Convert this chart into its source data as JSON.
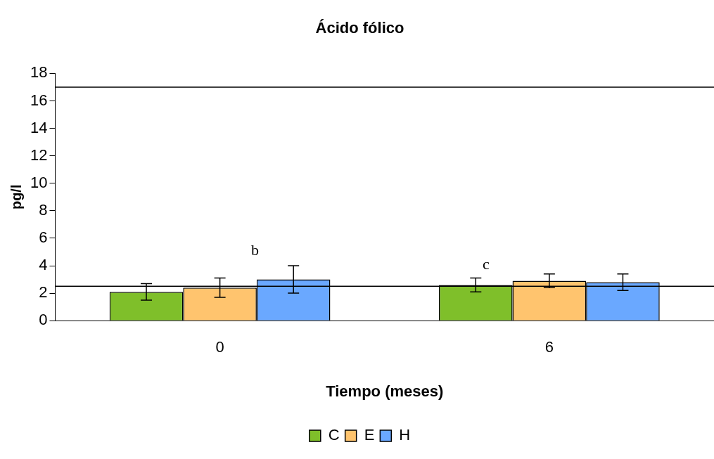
{
  "chart_data": {
    "type": "bar",
    "title": "Ácido fólico",
    "xlabel": "Tiempo (meses)",
    "ylabel": "pg/l",
    "categories": [
      "0",
      "6"
    ],
    "series": [
      {
        "name": "C",
        "color": "#7fbf2a",
        "values": [
          2.1,
          2.6
        ],
        "errors": [
          0.6,
          0.5
        ]
      },
      {
        "name": "E",
        "color": "#ffc46e",
        "values": [
          2.4,
          2.9
        ],
        "errors": [
          0.7,
          0.5
        ]
      },
      {
        "name": "H",
        "color": "#6aa8ff",
        "values": [
          3.0,
          2.8
        ],
        "errors": [
          1.0,
          0.6
        ]
      }
    ],
    "ylim": [
      0,
      18
    ],
    "yticks": [
      0,
      2,
      4,
      6,
      8,
      10,
      12,
      14,
      16,
      18
    ],
    "grid": false,
    "legend": "bottom",
    "ref_lines": [
      {
        "axis": "y",
        "value": 2.5,
        "color": "#000000"
      },
      {
        "axis": "y",
        "value": 17,
        "color": "#000000"
      }
    ],
    "annotations": [
      "b",
      "c"
    ]
  }
}
